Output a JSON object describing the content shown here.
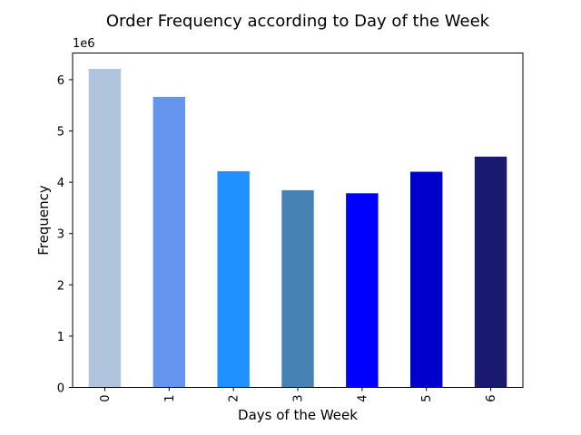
{
  "chart_data": {
    "type": "bar",
    "title": "Order Frequency according to Day of the Week",
    "xlabel": "Days of the Week",
    "ylabel": "Frequency",
    "y_scale_label": "1e6",
    "y_multiplier": 1000000,
    "categories": [
      "0",
      "1",
      "2",
      "3",
      "4",
      "5",
      "6"
    ],
    "values": [
      6210000,
      5665000,
      4215000,
      3845000,
      3785000,
      4205000,
      4500000
    ],
    "colors": [
      "#b0c4de",
      "#6495ed",
      "#1e90ff",
      "#4682b4",
      "#0000ff",
      "#0000cd",
      "#191970"
    ],
    "yticks": [
      0,
      1,
      2,
      3,
      4,
      5,
      6
    ],
    "ylim": [
      0,
      6520000
    ],
    "grid": false,
    "legend": false
  }
}
